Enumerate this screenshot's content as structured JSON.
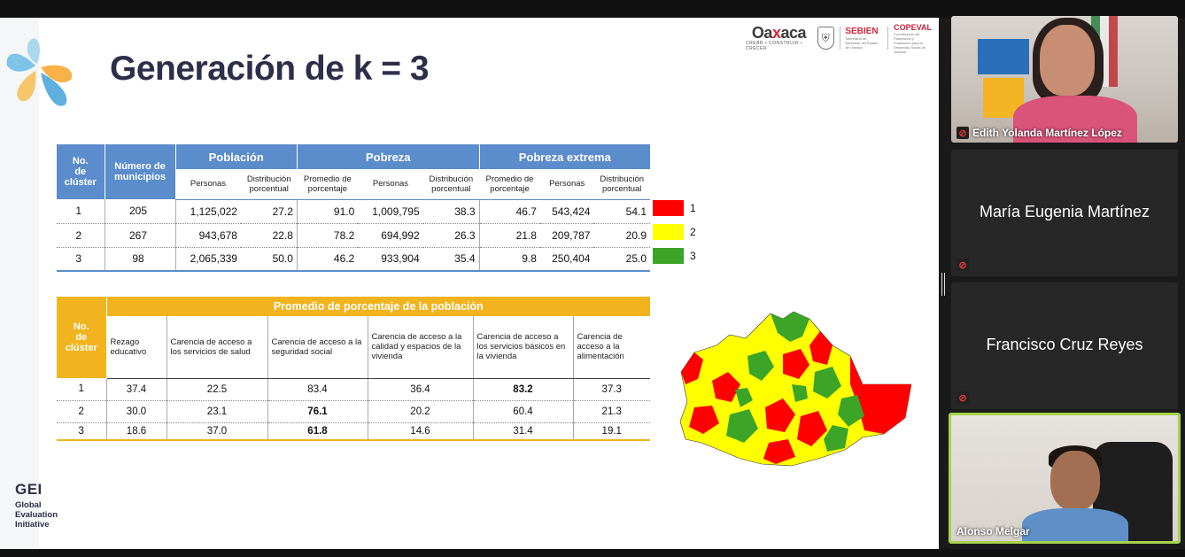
{
  "slide": {
    "title": "Generación de k = 3",
    "logos": {
      "oaxaca_word_a": "Oa",
      "oaxaca_word_x": "x",
      "oaxaca_word_b": "aca",
      "oaxaca_tag": "CREAR • CONSTRUIR • CRECER",
      "sebien": "SEBIEN",
      "sebien_tag": "Secretaría de Bienestar del Estado de Oaxaca",
      "copeval": "COPEVAL",
      "copeval_tag": "Coordinación de Planeación y Evaluación para el Desarrollo Social de Oaxaca"
    },
    "gei": {
      "mark": "GEI",
      "line1": "Global",
      "line2": "Evaluation",
      "line3": "Initiative"
    }
  },
  "table1": {
    "headers": {
      "no_cluster": [
        "No.",
        "de",
        "clúster"
      ],
      "num_municipios": [
        "Número de",
        "municipios"
      ],
      "poblacion": "Población",
      "pobreza": "Pobreza",
      "pobreza_extrema": "Pobreza extrema",
      "personas": "Personas",
      "distribucion": [
        "Distribución",
        "porcentual"
      ],
      "promedio": [
        "Promedio de",
        "porcentaje"
      ]
    },
    "rows": [
      {
        "cluster": "1",
        "municipios": "205",
        "pob_personas": "1,125,022",
        "pob_dist": "27.2",
        "pobreza_prom": "91.0",
        "pobreza_personas": "1,009,795",
        "pobreza_dist": "38.3",
        "ext_prom": "46.7",
        "ext_personas": "543,424",
        "ext_dist": "54.1"
      },
      {
        "cluster": "2",
        "municipios": "267",
        "pob_personas": "943,678",
        "pob_dist": "22.8",
        "pobreza_prom": "78.2",
        "pobreza_personas": "694,992",
        "pobreza_dist": "26.3",
        "ext_prom": "21.8",
        "ext_personas": "209,787",
        "ext_dist": "20.9"
      },
      {
        "cluster": "3",
        "municipios": "98",
        "pob_personas": "2,065,339",
        "pob_dist": "50.0",
        "pobreza_prom": "46.2",
        "pobreza_personas": "933,904",
        "pobreza_dist": "35.4",
        "ext_prom": "9.8",
        "ext_personas": "250,404",
        "ext_dist": "25.0"
      }
    ]
  },
  "legend": [
    {
      "label": "1",
      "color": "#ff0000"
    },
    {
      "label": "2",
      "color": "#ffff00"
    },
    {
      "label": "3",
      "color": "#3ca528"
    }
  ],
  "table2": {
    "headers": {
      "no_cluster": [
        "No.",
        "de",
        "clúster"
      ],
      "title": "Promedio de porcentaje de la población",
      "cols": [
        "Rezago educativo",
        "Carencia de acceso a los servicios de salud",
        "Carencia de acceso a la seguridad social",
        "Carencia de acceso a la calidad y espacios de la vivienda",
        "Carencia de acceso a los servicios básicos en la vivienda",
        "Carencia de acceso a la alimentación"
      ]
    },
    "rows": [
      {
        "cluster": "1",
        "values": [
          "37.4",
          "22.5",
          "83.4",
          "36.4",
          "83.2",
          "37.3"
        ]
      },
      {
        "cluster": "2",
        "values": [
          "30.0",
          "23.1",
          "76.1",
          "20.2",
          "60.4",
          "21.3"
        ]
      },
      {
        "cluster": "3",
        "values": [
          "18.6",
          "37.0",
          "61.8",
          "14.6",
          "31.4",
          "19.1"
        ]
      }
    ]
  },
  "participants": [
    {
      "name": "Edith Yolanda Martínez López",
      "mic": "muted"
    },
    {
      "name": "María Eugenia Martínez",
      "mic": "muted"
    },
    {
      "name": "Francisco Cruz Reyes",
      "mic": "muted"
    },
    {
      "name": "Alonso Melgar",
      "mic": "active-speaker"
    }
  ],
  "colors": {
    "title": "#2d2f4a",
    "table1_header": "#5b8ccc",
    "table2_header": "#f1b41f",
    "active_speaker_border": "#a6d24a"
  }
}
